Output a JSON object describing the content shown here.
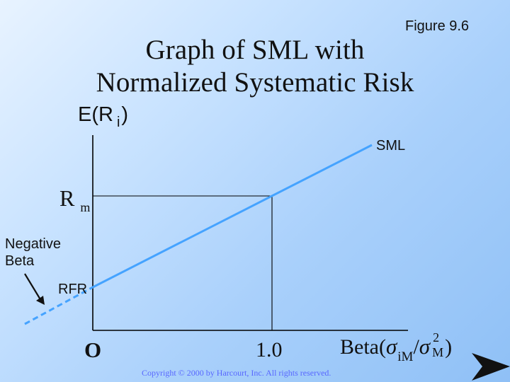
{
  "figure_label": "Figure 9.6",
  "title": {
    "line1": "Graph of SML with",
    "line2": "Normalized Systematic Risk"
  },
  "axes": {
    "y_label_prefix": "E(R",
    "y_label_sub": "i",
    "y_label_suffix": ")",
    "origin": "O",
    "x_tick": "1.0",
    "x_label_beta": "Beta(",
    "x_label_sigma1": "σ",
    "x_label_sub1": "iM",
    "x_label_slash": "/",
    "x_label_sigma2": "σ",
    "x_label_sup2": "2",
    "x_label_sub2": "M",
    "x_label_close": ")"
  },
  "labels": {
    "rm_main": "R",
    "rm_sub": "m",
    "sml": "SML",
    "negative_beta": "Negative\nBeta",
    "rfr": "RFR"
  },
  "diagram": {
    "line_color": "#45a3ff",
    "axis_color": "#000000",
    "arrow_color": "#111111"
  },
  "copyright": "Copyright © 2000 by Harcourt, Inc.  All rights reserved.",
  "navigation": {
    "next_icon": "next-slide-arrow-icon"
  }
}
